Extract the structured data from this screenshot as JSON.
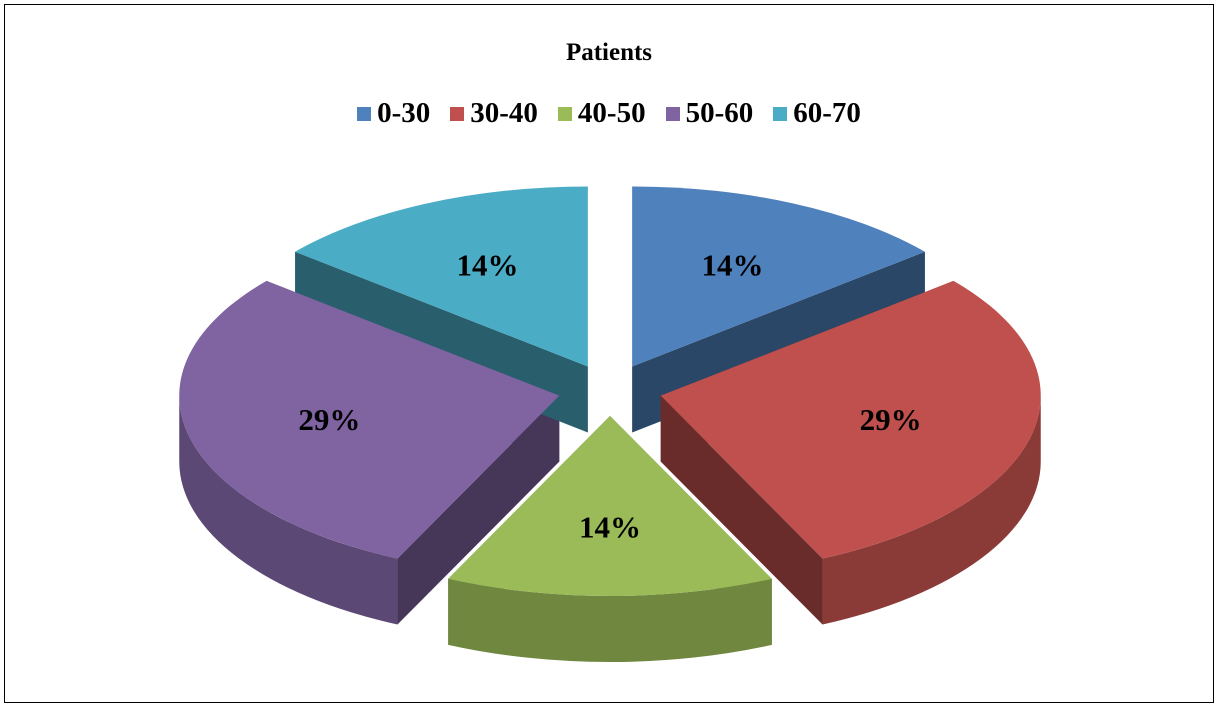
{
  "chart_data": {
    "type": "pie",
    "title": "Patients",
    "categories": [
      "0-30",
      "30-40",
      "40-50",
      "50-60",
      "60-70"
    ],
    "values": [
      14,
      29,
      14,
      29,
      14
    ],
    "value_labels": [
      "14%",
      "29%",
      "14%",
      "29%",
      "14%"
    ],
    "colors": [
      "#4F81BD",
      "#C0504D",
      "#9BBB59",
      "#8064A2",
      "#4BACC6"
    ],
    "legend_position": "top",
    "style": "3d-exploded"
  }
}
